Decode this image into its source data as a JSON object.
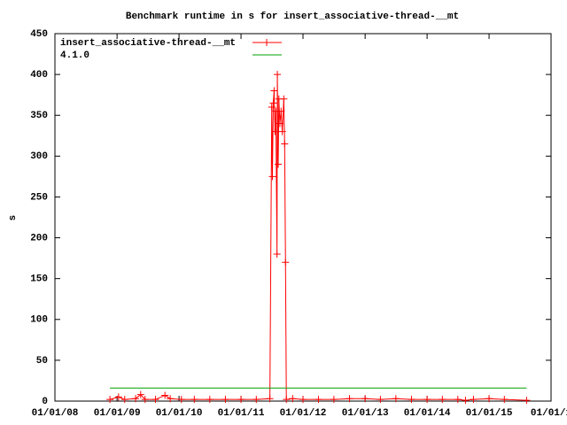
{
  "chart_data": {
    "type": "line",
    "title": "Benchmark runtime in s for insert_associative-thread-__mt",
    "y_label": "s",
    "legend": "top-left",
    "grid": false,
    "ylim": [
      0,
      450
    ],
    "yticks": [
      0,
      50,
      100,
      150,
      200,
      250,
      300,
      350,
      400,
      450
    ],
    "xlim": [
      "2008-01-01",
      "2016-01-01"
    ],
    "xticks": [
      {
        "value": "2008-01-01",
        "label": "01/01/08"
      },
      {
        "value": "2009-01-01",
        "label": "01/01/09"
      },
      {
        "value": "2010-01-01",
        "label": "01/01/10"
      },
      {
        "value": "2011-01-01",
        "label": "01/01/11"
      },
      {
        "value": "2012-01-01",
        "label": "01/01/12"
      },
      {
        "value": "2013-01-01",
        "label": "01/01/13"
      },
      {
        "value": "2014-01-01",
        "label": "01/01/14"
      },
      {
        "value": "2015-01-01",
        "label": "01/01/15"
      },
      {
        "value": "2016-01-01",
        "label": "01/01/1"
      }
    ],
    "series": [
      {
        "name": "insert_associative-thread-__mt",
        "color": "#ff0000",
        "markers": true,
        "x": [
          "2008-11-20",
          "2009-01-10",
          "2009-02-15",
          "2009-04-20",
          "2009-05-20",
          "2009-06-15",
          "2009-08-15",
          "2009-10-10",
          "2009-11-10",
          "2010-01-15",
          "2010-04-01",
          "2010-07-01",
          "2010-10-01",
          "2011-01-01",
          "2011-04-01",
          "2011-06-20",
          "2011-07-01",
          "2011-07-05",
          "2011-07-10",
          "2011-07-15",
          "2011-07-20",
          "2011-07-25",
          "2011-08-01",
          "2011-08-03",
          "2011-08-08",
          "2011-08-12",
          "2011-08-18",
          "2011-08-25",
          "2011-09-01",
          "2011-09-10",
          "2011-09-15",
          "2011-09-20",
          "2011-09-25",
          "2011-11-01",
          "2012-01-01",
          "2012-04-01",
          "2012-07-01",
          "2012-10-01",
          "2013-01-01",
          "2013-04-01",
          "2013-07-01",
          "2013-10-01",
          "2014-01-01",
          "2014-04-01",
          "2014-07-01",
          "2014-08-15",
          "2014-10-01",
          "2015-01-01",
          "2015-04-01",
          "2015-08-10"
        ],
        "values": [
          2,
          5,
          2,
          3,
          8,
          2,
          2,
          7,
          3,
          2,
          2,
          2,
          2,
          2,
          2,
          3,
          360,
          275,
          365,
          380,
          330,
          355,
          180,
          400,
          290,
          370,
          340,
          355,
          330,
          370,
          315,
          170,
          2,
          3,
          2,
          2,
          2,
          3,
          3,
          2,
          3,
          2,
          2,
          2,
          2,
          1,
          2,
          3,
          2,
          1
        ]
      },
      {
        "name": "4.1.0",
        "color": "#00a000",
        "markers": false,
        "x": [
          "2008-11-20",
          "2015-08-10"
        ],
        "values": [
          16,
          16
        ]
      }
    ]
  }
}
